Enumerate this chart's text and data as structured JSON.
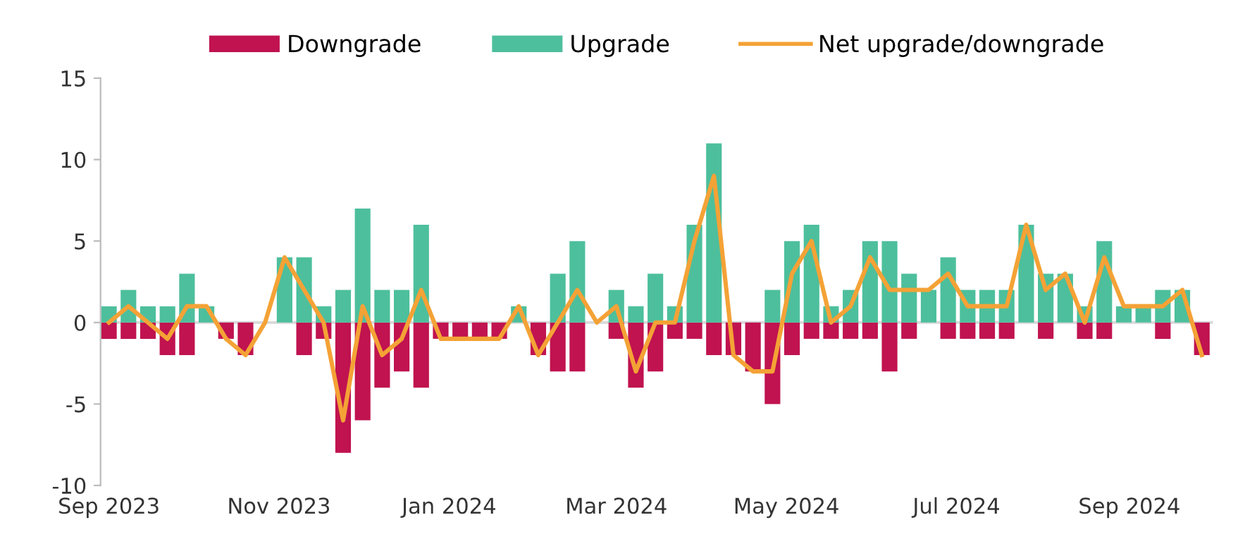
{
  "chart_data": {
    "type": "bar",
    "x": [
      "2023-09-01",
      "2023-09-08",
      "2023-09-15",
      "2023-09-22",
      "2023-09-29",
      "2023-10-06",
      "2023-10-13",
      "2023-10-20",
      "2023-10-27",
      "2023-11-03",
      "2023-11-10",
      "2023-11-17",
      "2023-11-24",
      "2023-12-01",
      "2023-12-08",
      "2023-12-15",
      "2023-12-22",
      "2023-12-29",
      "2024-01-05",
      "2024-01-12",
      "2024-01-19",
      "2024-01-26",
      "2024-02-02",
      "2024-02-09",
      "2024-02-16",
      "2024-02-23",
      "2024-03-01",
      "2024-03-08",
      "2024-03-15",
      "2024-03-22",
      "2024-03-29",
      "2024-04-05",
      "2024-04-12",
      "2024-04-19",
      "2024-04-26",
      "2024-05-03",
      "2024-05-10",
      "2024-05-17",
      "2024-05-24",
      "2024-05-31",
      "2024-06-07",
      "2024-06-14",
      "2024-06-21",
      "2024-06-28",
      "2024-07-05",
      "2024-07-12",
      "2024-07-19",
      "2024-07-26",
      "2024-08-02",
      "2024-08-09",
      "2024-08-16",
      "2024-08-23",
      "2024-08-30",
      "2024-09-06",
      "2024-09-13",
      "2024-09-20",
      "2024-09-27"
    ],
    "series": [
      {
        "name": "Downgrade",
        "color": "#c0134f",
        "values": [
          -1,
          -1,
          -1,
          -2,
          -2,
          0,
          -1,
          -2,
          0,
          0,
          -2,
          -1,
          -8,
          -6,
          -4,
          -3,
          -4,
          -1,
          -1,
          -1,
          -1,
          0,
          -2,
          -3,
          -3,
          0,
          -1,
          -4,
          -3,
          -1,
          -1,
          -2,
          -2,
          -3,
          -5,
          -2,
          -1,
          -1,
          -1,
          -1,
          -3,
          -1,
          0,
          -1,
          -1,
          -1,
          -1,
          0,
          -1,
          0,
          -1,
          -1,
          0,
          0,
          -1,
          0,
          -2
        ]
      },
      {
        "name": "Upgrade",
        "color": "#4dbf9c",
        "values": [
          1,
          2,
          1,
          1,
          3,
          1,
          0,
          0,
          0,
          4,
          4,
          1,
          2,
          7,
          2,
          2,
          6,
          0,
          0,
          0,
          0,
          1,
          0,
          3,
          5,
          0,
          2,
          1,
          3,
          1,
          6,
          11,
          0,
          0,
          2,
          5,
          6,
          1,
          2,
          5,
          5,
          3,
          2,
          4,
          2,
          2,
          2,
          6,
          3,
          3,
          1,
          5,
          1,
          1,
          2,
          2,
          0
        ]
      },
      {
        "name": "Net upgrade/downgrade",
        "type": "line",
        "color": "#f4a236",
        "values": [
          0,
          1,
          0,
          -1,
          1,
          1,
          -1,
          -2,
          0,
          4,
          2,
          0,
          -6,
          1,
          -2,
          -1,
          2,
          -1,
          -1,
          -1,
          -1,
          1,
          -2,
          0,
          2,
          0,
          1,
          -3,
          0,
          0,
          5,
          9,
          -2,
          -3,
          -3,
          3,
          5,
          0,
          1,
          4,
          2,
          2,
          2,
          3,
          1,
          1,
          1,
          6,
          2,
          3,
          0,
          4,
          1,
          1,
          1,
          2,
          -2
        ]
      }
    ],
    "xlim": [
      "2023-08-29",
      "2024-10-01"
    ],
    "xticks": [
      {
        "value": "2023-09-01",
        "label": "Sep 2023"
      },
      {
        "value": "2023-11-01",
        "label": "Nov 2023"
      },
      {
        "value": "2024-01-01",
        "label": "Jan 2024"
      },
      {
        "value": "2024-03-01",
        "label": "Mar 2024"
      },
      {
        "value": "2024-05-01",
        "label": "May 2024"
      },
      {
        "value": "2024-07-01",
        "label": "Jul 2024"
      },
      {
        "value": "2024-09-01",
        "label": "Sep 2024"
      }
    ],
    "ylim": [
      -10,
      15
    ],
    "yticks": [
      -10,
      -5,
      0,
      5,
      10,
      15
    ],
    "ref_lines": [
      {
        "axis": "y",
        "value": 0,
        "color": "#d9d9d9"
      }
    ],
    "stacked": true,
    "legend": "top",
    "grid": false,
    "marker": "none",
    "line_style": "solid"
  }
}
